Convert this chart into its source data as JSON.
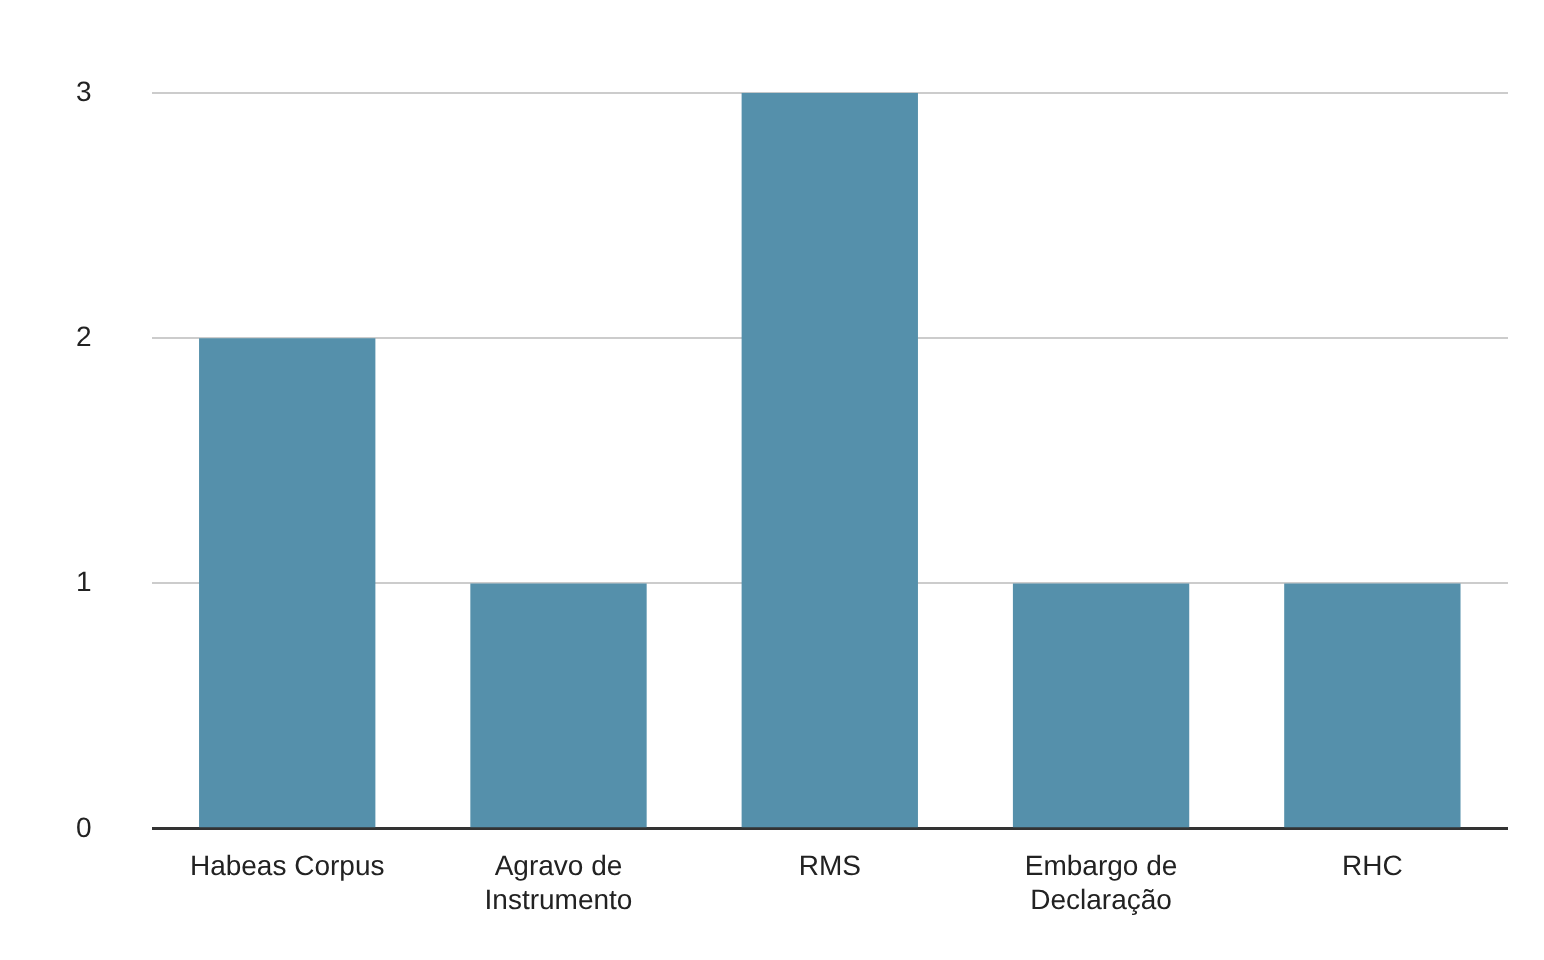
{
  "chart_data": {
    "type": "bar",
    "categories": [
      "Habeas Corpus",
      "Agravo de Instrumento",
      "RMS",
      "Embargo de Declaração",
      "RHC"
    ],
    "values": [
      2,
      1,
      3,
      1,
      1
    ],
    "color": "#5590ab",
    "ylim": [
      0,
      3
    ],
    "yticks": [
      0,
      1,
      2,
      3
    ],
    "grid": "y",
    "legend": false
  }
}
